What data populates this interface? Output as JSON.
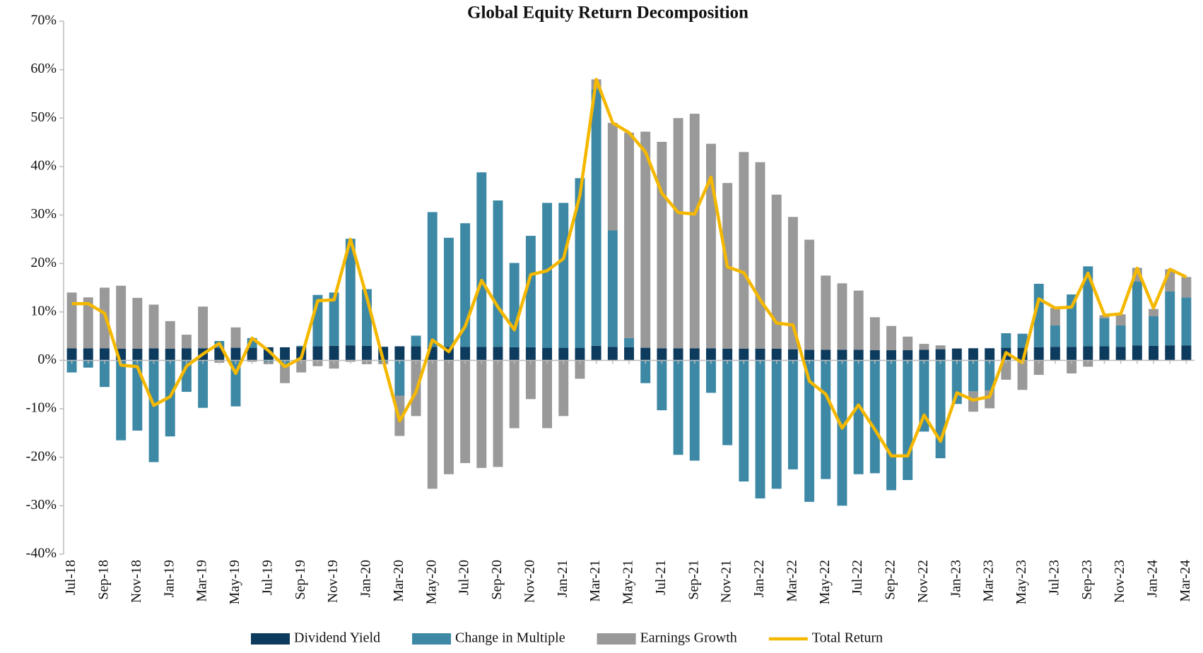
{
  "chart_data": {
    "type": "stacked_bar_line",
    "title": "Global Equity Return Decomposition",
    "categories": [
      "Jul-18",
      null,
      "Sep-18",
      null,
      "Nov-18",
      null,
      "Jan-19",
      null,
      "Mar-19",
      null,
      "May-19",
      null,
      "Jul-19",
      null,
      "Sep-19",
      null,
      "Nov-19",
      null,
      "Jan-20",
      null,
      "Mar-20",
      null,
      "May-20",
      null,
      "Jul-20",
      null,
      "Sep-20",
      null,
      "Nov-20",
      null,
      "Jan-21",
      null,
      "Mar-21",
      null,
      "May-21",
      null,
      "Jul-21",
      null,
      "Sep-21",
      null,
      "Nov-21",
      null,
      "Jan-22",
      null,
      "Mar-22",
      null,
      "May-22",
      null,
      "Jul-22",
      null,
      "Sep-22",
      null,
      "Nov-22",
      null,
      "Jan-23",
      null,
      "Mar-23",
      null,
      "May-23",
      null,
      "Jul-23",
      null,
      "Sep-23",
      null,
      "Nov-23",
      null,
      "Jan-24",
      null,
      "Mar-24"
    ],
    "series": [
      {
        "name": "Dividend Yield",
        "color": "#0d3b5e",
        "kind": "bar",
        "values": [
          2.5,
          2.5,
          2.5,
          2.4,
          2.4,
          2.5,
          2.4,
          2.5,
          2.5,
          2.6,
          2.6,
          2.6,
          2.7,
          2.7,
          2.8,
          2.9,
          3,
          3.1,
          3,
          2.8,
          2.9,
          2.9,
          2.8,
          2.8,
          2.8,
          2.8,
          2.8,
          2.7,
          2.7,
          2.6,
          2.6,
          2.6,
          3,
          2.8,
          2.7,
          2.6,
          2.5,
          2.5,
          2.5,
          2.5,
          2.4,
          2.4,
          2.4,
          2.4,
          2.3,
          2.2,
          2.2,
          2.2,
          2.2,
          2.1,
          2.1,
          2.1,
          2.2,
          2.3,
          2.4,
          2.5,
          2.5,
          2.6,
          2.6,
          2.7,
          2.8,
          2.8,
          2.9,
          2.9,
          2.8,
          3.1,
          3,
          3.1,
          3.1
        ]
      },
      {
        "name": "Change in Multiple",
        "color": "#3c88a5",
        "kind": "bar",
        "values": [
          -2.5,
          -1.5,
          -5.5,
          -16.5,
          -14.5,
          -21,
          -15.7,
          -6.5,
          -9.8,
          1.4,
          -9.5,
          2,
          -0.3,
          -1,
          0.2,
          10.6,
          11,
          22,
          11.7,
          -0.3,
          -7.3,
          2.2,
          27.8,
          22.5,
          25.5,
          36,
          30.2,
          17.4,
          23,
          29.9,
          29.9,
          35,
          53,
          24,
          1.9,
          -4.7,
          -10.3,
          -19.5,
          -20.7,
          -6.7,
          -17.5,
          -25,
          -28.5,
          -26.5,
          -22.5,
          -29.2,
          -24.5,
          -30,
          -23.5,
          -23.3,
          -26.8,
          -24.7,
          -14.7,
          -20.2,
          -9,
          -6.4,
          -6.2,
          3,
          2.9,
          13.1,
          4.4,
          10.8,
          16.5,
          5.8,
          4.4,
          13.2,
          6.1,
          11.1,
          9.9
        ]
      },
      {
        "name": "Earnings Growth",
        "color": "#999999",
        "kind": "bar",
        "values": [
          11.5,
          10.5,
          12.5,
          13,
          10.5,
          9,
          5.7,
          2.8,
          8.6,
          -0.5,
          4.2,
          -0.3,
          -0.5,
          -3.7,
          -2.5,
          -1.2,
          -1.7,
          -0.3,
          -0.8,
          -0.5,
          -8.3,
          -11.5,
          -26.5,
          -23.5,
          -21.2,
          -22.2,
          -22,
          -14,
          -8,
          -14,
          -11.5,
          -3.8,
          2,
          22.2,
          42.4,
          44.6,
          42.6,
          47.5,
          48.4,
          42.2,
          34.2,
          40.6,
          38.5,
          31.8,
          27.3,
          22.7,
          15.3,
          13.7,
          12.2,
          6.8,
          5,
          2.8,
          1.2,
          0.8,
          0.1,
          -4.2,
          -3.7,
          -4,
          -6.1,
          -3,
          3.6,
          -2.7,
          -1.3,
          0.6,
          2.3,
          2.8,
          1.5,
          4.6,
          4.2
        ]
      },
      {
        "name": "Total Return",
        "color": "#f5b800",
        "kind": "line",
        "values": [
          11.7,
          11.7,
          9.7,
          -1,
          -1.3,
          -9.3,
          -7.5,
          -1.2,
          1.3,
          3.5,
          -2.7,
          4.6,
          2,
          -1.3,
          0.5,
          12.3,
          12.5,
          25,
          13,
          0,
          -12.5,
          -6.5,
          4.2,
          1.8,
          7,
          16.5,
          11,
          6.3,
          17.7,
          18.5,
          21,
          34,
          58,
          49,
          47,
          43,
          34.5,
          30.5,
          30.2,
          37.8,
          19.3,
          18.1,
          12.5,
          7.7,
          7.3,
          -4.3,
          -7,
          -14,
          -9.2,
          -14.3,
          -19.7,
          -19.7,
          -11.3,
          -16.7,
          -6.7,
          -8.2,
          -7.5,
          1.6,
          -0.5,
          12.7,
          10.8,
          11,
          18,
          9.3,
          9.6,
          19,
          10.8,
          18.8,
          17.2
        ]
      }
    ],
    "ylim": [
      -40,
      70
    ],
    "yticks": [
      {
        "value": -40,
        "label": "-40%"
      },
      {
        "value": -30,
        "label": "-30%"
      },
      {
        "value": -20,
        "label": "-20%"
      },
      {
        "value": -10,
        "label": "-10%"
      },
      {
        "value": 0,
        "label": "0%"
      },
      {
        "value": 10,
        "label": "10%"
      },
      {
        "value": 20,
        "label": "20%"
      },
      {
        "value": 30,
        "label": "30%"
      },
      {
        "value": 40,
        "label": "40%"
      },
      {
        "value": 50,
        "label": "50%"
      },
      {
        "value": 60,
        "label": "60%"
      },
      {
        "value": 70,
        "label": "70%"
      }
    ],
    "grid": false,
    "legend": "bottom"
  }
}
